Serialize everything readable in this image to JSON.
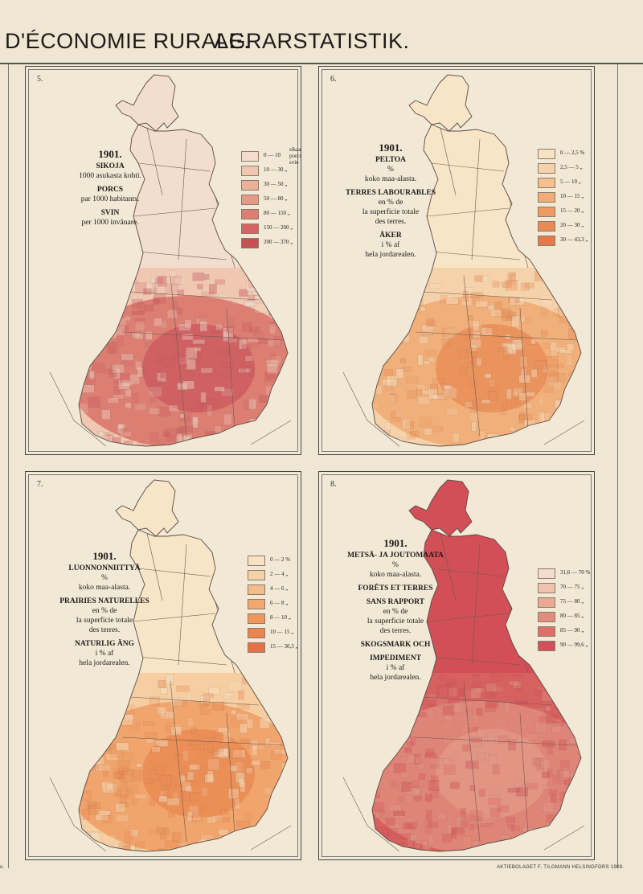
{
  "header": {
    "french": "D'ÉCONOMIE RURALE.",
    "german": "AGRARSTATISTIK."
  },
  "credit": "AKTIEBOLAGET F. TILGMANN HELSINGFORS 1909.",
  "left_edge_mark": "o.",
  "panels": [
    {
      "number": "5.",
      "year": "1901.",
      "lines": [
        {
          "text": "SIKOJA",
          "style": "fi"
        },
        {
          "text": "1000 asukasta kohti.",
          "style": "plain"
        },
        {
          "text": "PORCS",
          "style": "fr"
        },
        {
          "text": "par 1000 habitants.",
          "style": "plain"
        },
        {
          "text": "SVIN",
          "style": "sv"
        },
        {
          "text": "per 1000 invånare.",
          "style": "plain"
        }
      ],
      "brace_label": [
        "sikaa",
        "porcs",
        "svin"
      ],
      "legend": [
        {
          "label": "0 — 10",
          "color": "#f3dccb"
        },
        {
          "label": "10 — 30 „",
          "color": "#efc6b0"
        },
        {
          "label": "30 — 50 „",
          "color": "#eab198"
        },
        {
          "label": "50 — 80 „",
          "color": "#e39a86"
        },
        {
          "label": "80 — 150 „",
          "color": "#dc7f72"
        },
        {
          "label": "150 — 200 „",
          "color": "#d46563"
        },
        {
          "label": "200 — 370 „",
          "color": "#c94f55"
        }
      ]
    },
    {
      "number": "6.",
      "year": "1901.",
      "lines": [
        {
          "text": "PELTOA",
          "style": "fi"
        },
        {
          "text": "%",
          "style": "plain"
        },
        {
          "text": "koko maa-alasta.",
          "style": "plain"
        },
        {
          "text": "TERRES LABOURABLES",
          "style": "fr"
        },
        {
          "text": "en % de",
          "style": "plain"
        },
        {
          "text": "la superficie totale",
          "style": "plain"
        },
        {
          "text": "des terres.",
          "style": "plain"
        },
        {
          "text": "ÅKER",
          "style": "sv"
        },
        {
          "text": "i % af",
          "style": "plain"
        },
        {
          "text": "hela jordarealen.",
          "style": "plain"
        }
      ],
      "legend": [
        {
          "label": "0 — 2,5 %",
          "color": "#f8e2c4"
        },
        {
          "label": "2,5 — 5 „",
          "color": "#f6d2aa"
        },
        {
          "label": "5 — 10 „",
          "color": "#f4c08f"
        },
        {
          "label": "10 — 15 „",
          "color": "#f1ad77"
        },
        {
          "label": "15 — 20 „",
          "color": "#ee9b62"
        },
        {
          "label": "20 — 30 „",
          "color": "#ea8a55"
        },
        {
          "label": "30 — 43,3 „",
          "color": "#e5794b"
        }
      ]
    },
    {
      "number": "7.",
      "year": "1901.",
      "lines": [
        {
          "text": "LUONNONNIITTYÄ",
          "style": "fi"
        },
        {
          "text": "%",
          "style": "plain"
        },
        {
          "text": "koko maa-alasta.",
          "style": "plain"
        },
        {
          "text": "PRAIRIES NATURELLES",
          "style": "fr"
        },
        {
          "text": "en % de",
          "style": "plain"
        },
        {
          "text": "la superficie totale",
          "style": "plain"
        },
        {
          "text": "des terres.",
          "style": "plain"
        },
        {
          "text": "NATURLIG ÄNG",
          "style": "sv"
        },
        {
          "text": "i % af",
          "style": "plain"
        },
        {
          "text": "hela jordarealen.",
          "style": "plain"
        }
      ],
      "legend": [
        {
          "label": "0 — 2 %",
          "color": "#f8e2c4"
        },
        {
          "label": "2 — 4 „",
          "color": "#f6d0a6"
        },
        {
          "label": "4 — 6 „",
          "color": "#f4bc8a"
        },
        {
          "label": "6 — 8 „",
          "color": "#f1a870"
        },
        {
          "label": "8 — 10 „",
          "color": "#ee965c"
        },
        {
          "label": "10 — 15 „",
          "color": "#ea8450"
        },
        {
          "label": "15 — 30,3 „",
          "color": "#e47247"
        }
      ]
    },
    {
      "number": "8.",
      "year": "1901.",
      "lines": [
        {
          "text": "METSÄ- JA JOUTOMAATA",
          "style": "fi"
        },
        {
          "text": "%",
          "style": "plain"
        },
        {
          "text": "koko maa-alasta.",
          "style": "plain"
        },
        {
          "text": "FORÊTS ET TERRES",
          "style": "fr"
        },
        {
          "text": "SANS RAPPORT",
          "style": "fr"
        },
        {
          "text": "en % de",
          "style": "plain"
        },
        {
          "text": "la superficie totale",
          "style": "plain"
        },
        {
          "text": "des terres.",
          "style": "plain"
        },
        {
          "text": "SKOGSMARK OCH",
          "style": "sv"
        },
        {
          "text": "IMPEDIMENT",
          "style": "sv"
        },
        {
          "text": "i % af",
          "style": "plain"
        },
        {
          "text": "hela jordarealen.",
          "style": "plain"
        }
      ],
      "legend": [
        {
          "label": "31,6 — 70 %",
          "color": "#f3dccb"
        },
        {
          "label": "70 — 75 „",
          "color": "#efc3ad"
        },
        {
          "label": "75 — 80 „",
          "color": "#e9a993"
        },
        {
          "label": "80 — 85 „",
          "color": "#e28e7e"
        },
        {
          "label": "85 — 90 „",
          "color": "#da7069"
        },
        {
          "label": "90 — 99,6 „",
          "color": "#d0535a"
        }
      ]
    }
  ],
  "map_tones": {
    "pigs": {
      "north": "#f3ddcc",
      "mid": "#f0c8b2",
      "south": "#dc7f72",
      "core": "#cd5a5f"
    },
    "arable": {
      "north": "#f8e4c7",
      "mid": "#f6d2aa",
      "south": "#f1b07a",
      "core": "#ea8c56"
    },
    "meadow": {
      "north": "#f8e4c7",
      "mid": "#f6cea2",
      "south": "#f1a46c",
      "core": "#ea8a52"
    },
    "forest": {
      "north": "#d24f57",
      "mid": "#d6615f",
      "south": "#df8577",
      "core": "#e39887"
    }
  }
}
